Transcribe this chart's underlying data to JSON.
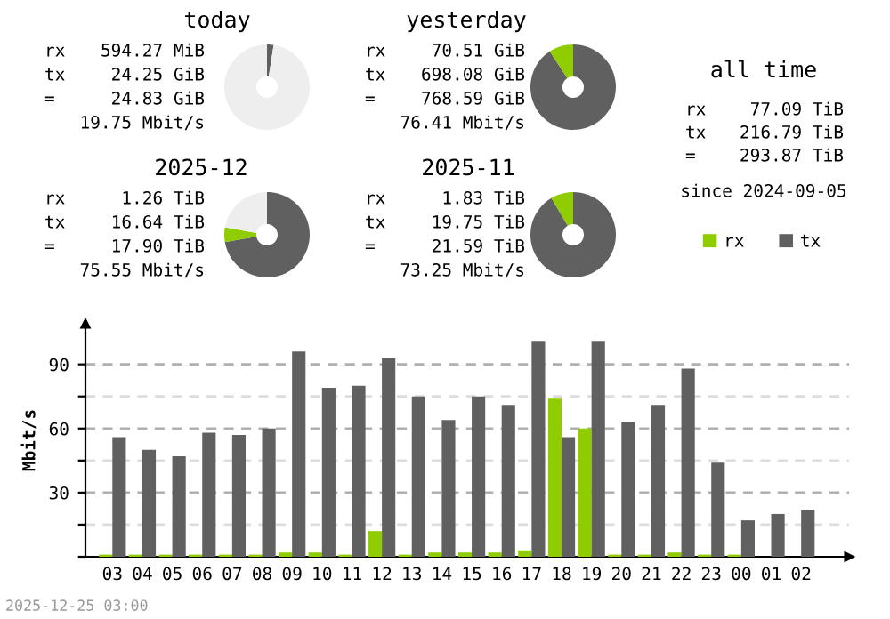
{
  "chart_data": [
    {
      "type": "donut",
      "title": "today",
      "categories": [
        null,
        null,
        null
      ],
      "values": [
        2.5,
        null,
        97.4
      ],
      "colors": [
        "#606060",
        "#8fcc00",
        "#eeeeee"
      ],
      "annotations": [
        "rx 594.27 MiB",
        "tx 24.25 GiB",
        "= 24.83 GiB",
        "19.75 Mbit/s"
      ]
    },
    {
      "type": "donut",
      "title": "yesterday",
      "categories": [
        null,
        null,
        null
      ],
      "values": [
        90.8,
        9.2,
        0
      ],
      "colors": [
        "#606060",
        "#8fcc00",
        "#eeeeee"
      ],
      "annotations": [
        "rx 70.51 GiB",
        "tx 698.08 GiB",
        "= 768.59 GiB",
        "76.41 Mbit/s"
      ]
    },
    {
      "type": "other",
      "title": "all time",
      "annotations": [
        "rx 77.09 TiB",
        "tx 216.79 TiB",
        "= 293.87 TiB",
        "since 2024-09-05"
      ]
    },
    {
      "type": "donut",
      "title": "2025-12",
      "categories": [
        null,
        null,
        null
      ],
      "values": [
        72.3,
        5.5,
        22.2
      ],
      "colors": [
        "#606060",
        "#8fcc00",
        "#eeeeee"
      ],
      "annotations": [
        "rx 1.26 TiB",
        "tx 16.64 TiB",
        "= 17.90 TiB",
        "75.55 Mbit/s"
      ]
    },
    {
      "type": "donut",
      "title": "2025-11",
      "categories": [
        null,
        null,
        null
      ],
      "values": [
        91.5,
        8.5,
        0
      ],
      "colors": [
        "#606060",
        "#8fcc00",
        "#eeeeee"
      ],
      "annotations": [
        "rx 1.83 TiB",
        "tx 19.75 TiB",
        "= 21.59 TiB",
        "73.25 Mbit/s"
      ]
    },
    {
      "type": "bar",
      "ylabel": "Mbit/s",
      "categories": [
        "03",
        "04",
        "05",
        "06",
        "07",
        "08",
        "09",
        "10",
        "11",
        "12",
        "13",
        "14",
        "15",
        "16",
        "17",
        "18",
        "19",
        "20",
        "21",
        "22",
        "23",
        "00",
        "01",
        "02"
      ],
      "series": [
        {
          "name": "rx",
          "color": "#8fcc00",
          "values": [
            1,
            1,
            1,
            1,
            1,
            1,
            2,
            2,
            1,
            12,
            1,
            2,
            2,
            2,
            3,
            74,
            60,
            1,
            1,
            2,
            1,
            1,
            null,
            null
          ]
        },
        {
          "name": "tx",
          "color": "#606060",
          "values": [
            56,
            50,
            47,
            58,
            57,
            60,
            96,
            79,
            80,
            93,
            75,
            64,
            75,
            71,
            101,
            56,
            101,
            63,
            71,
            88,
            44,
            17,
            20,
            22
          ]
        }
      ],
      "ylim": [
        0,
        109
      ],
      "yticks": [
        {
          "value": 0,
          "label": null
        },
        {
          "value": 15,
          "label": null
        },
        30,
        {
          "value": 45,
          "label": null
        },
        60,
        {
          "value": 75,
          "label": null
        },
        90
      ],
      "grid": "y",
      "legend": "top right",
      "annotations": [
        "2025-12-25 03:00"
      ]
    }
  ]
}
